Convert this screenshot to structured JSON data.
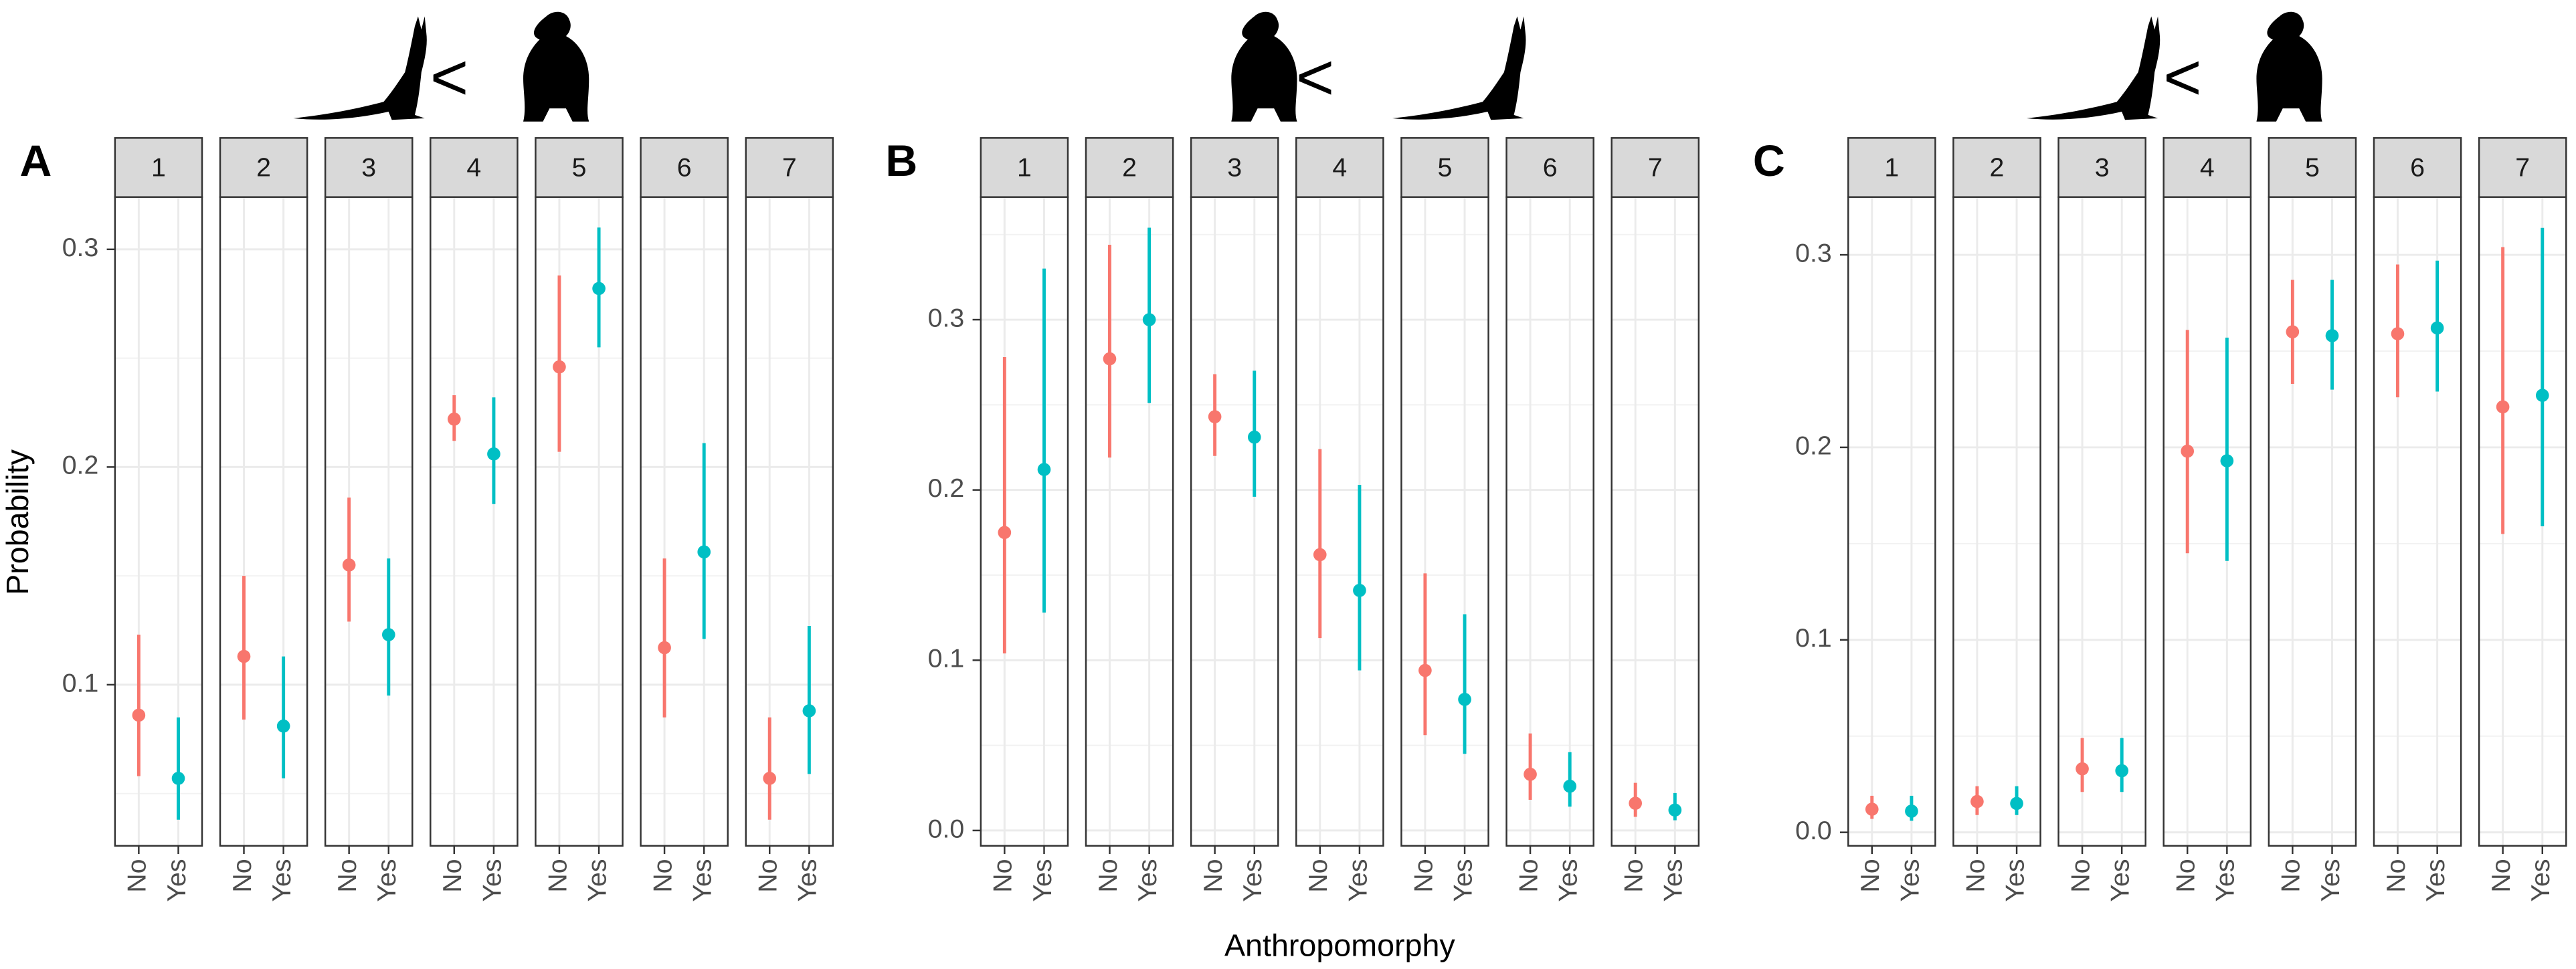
{
  "chart_data": [
    {
      "type": "pointrange",
      "panel": "A",
      "comparison": "<",
      "ylabel": "Probability",
      "facets": [
        "1",
        "2",
        "3",
        "4",
        "5",
        "6",
        "7"
      ],
      "categories": [
        "No",
        "Yes"
      ],
      "colors": [
        "#F8766D",
        "#00BFC4"
      ],
      "values": [
        [
          0.086,
          0.057
        ],
        [
          0.113,
          0.081
        ],
        [
          0.155,
          0.123
        ],
        [
          0.222,
          0.206
        ],
        [
          0.246,
          0.282
        ],
        [
          0.117,
          0.161
        ],
        [
          0.057,
          0.088
        ]
      ],
      "lower": [
        [
          0.058,
          0.038
        ],
        [
          0.084,
          0.057
        ],
        [
          0.129,
          0.095
        ],
        [
          0.212,
          0.183
        ],
        [
          0.207,
          0.255
        ],
        [
          0.085,
          0.121
        ],
        [
          0.038,
          0.059
        ]
      ],
      "upper": [
        [
          0.123,
          0.085
        ],
        [
          0.15,
          0.113
        ],
        [
          0.186,
          0.158
        ],
        [
          0.233,
          0.232
        ],
        [
          0.288,
          0.31
        ],
        [
          0.158,
          0.211
        ],
        [
          0.085,
          0.127
        ]
      ],
      "ylim": [
        0.026,
        0.324
      ],
      "yticks": [
        0.1,
        0.2,
        0.3
      ],
      "grid": true
    },
    {
      "type": "pointrange",
      "panel": "B",
      "comparison": "<",
      "xlabel": "Anthropomorphy",
      "facets": [
        "1",
        "2",
        "3",
        "4",
        "5",
        "6",
        "7"
      ],
      "categories": [
        "No",
        "Yes"
      ],
      "colors": [
        "#F8766D",
        "#00BFC4"
      ],
      "values": [
        [
          0.175,
          0.212
        ],
        [
          0.277,
          0.3
        ],
        [
          0.243,
          0.231
        ],
        [
          0.162,
          0.141
        ],
        [
          0.094,
          0.077
        ],
        [
          0.033,
          0.026
        ],
        [
          0.016,
          0.012
        ]
      ],
      "lower": [
        [
          0.104,
          0.128
        ],
        [
          0.219,
          0.251
        ],
        [
          0.22,
          0.196
        ],
        [
          0.113,
          0.094
        ],
        [
          0.056,
          0.045
        ],
        [
          0.018,
          0.014
        ],
        [
          0.008,
          0.006
        ]
      ],
      "upper": [
        [
          0.278,
          0.33
        ],
        [
          0.344,
          0.354
        ],
        [
          0.268,
          0.27
        ],
        [
          0.224,
          0.203
        ],
        [
          0.151,
          0.127
        ],
        [
          0.057,
          0.046
        ],
        [
          0.028,
          0.022
        ]
      ],
      "ylim": [
        -0.009,
        0.372
      ],
      "yticks": [
        {
          "value": 0,
          "label": "0.0"
        },
        0.1,
        0.2,
        0.3
      ],
      "grid": true
    },
    {
      "type": "pointrange",
      "panel": "C",
      "comparison": "<",
      "facets": [
        "1",
        "2",
        "3",
        "4",
        "5",
        "6",
        "7"
      ],
      "categories": [
        "No",
        "Yes"
      ],
      "colors": [
        "#F8766D",
        "#00BFC4"
      ],
      "values": [
        [
          0.012,
          0.011
        ],
        [
          0.016,
          0.015
        ],
        [
          0.033,
          0.032
        ],
        [
          0.198,
          0.193
        ],
        [
          0.26,
          0.258
        ],
        [
          0.259,
          0.262
        ],
        [
          0.221,
          0.227
        ]
      ],
      "lower": [
        [
          0.007,
          0.006
        ],
        [
          0.009,
          0.009
        ],
        [
          0.021,
          0.021
        ],
        [
          0.145,
          0.141
        ],
        [
          0.233,
          0.23
        ],
        [
          0.226,
          0.229
        ],
        [
          0.155,
          0.159
        ]
      ],
      "upper": [
        [
          0.019,
          0.019
        ],
        [
          0.024,
          0.024
        ],
        [
          0.049,
          0.049
        ],
        [
          0.261,
          0.257
        ],
        [
          0.287,
          0.287
        ],
        [
          0.295,
          0.297
        ],
        [
          0.304,
          0.314
        ]
      ],
      "ylim": [
        -0.007,
        0.33
      ],
      "yticks": [
        {
          "value": 0,
          "label": "0.0"
        },
        0.1,
        0.2,
        0.3
      ],
      "grid": true
    }
  ]
}
